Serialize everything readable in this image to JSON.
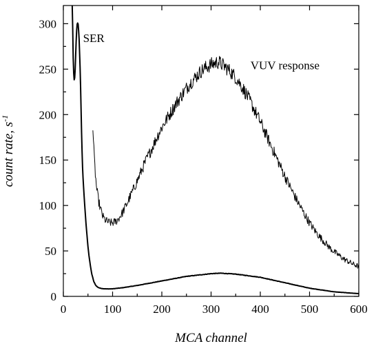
{
  "chart_data": {
    "type": "line",
    "title": "",
    "xlabel": "MCA channel",
    "ylabel_main": "count rate, s",
    "ylabel_sup": "-1",
    "xlim": [
      0,
      600
    ],
    "ylim": [
      0,
      320
    ],
    "xticks": [
      0,
      100,
      200,
      300,
      400,
      500,
      600
    ],
    "yticks": [
      0,
      50,
      100,
      150,
      200,
      250,
      300
    ],
    "xtick_labels": [
      "0",
      "100",
      "200",
      "300",
      "400",
      "500",
      "600"
    ],
    "ytick_labels": [
      "0",
      "50",
      "100",
      "150",
      "200",
      "250",
      "300"
    ],
    "grid": false,
    "annotations": [
      {
        "text": "SER",
        "x": 40,
        "y": 280
      },
      {
        "text": "VUV response",
        "x": 380,
        "y": 250
      }
    ],
    "series": [
      {
        "key": "ser",
        "stroke_width": 2.0,
        "noise": 0.5,
        "x": [
          18,
          19,
          20,
          21,
          22,
          23,
          24,
          25,
          26,
          27,
          28,
          29,
          30,
          31,
          32,
          33,
          34,
          35,
          36,
          37,
          38,
          39,
          40,
          42,
          44,
          46,
          48,
          50,
          52,
          54,
          56,
          58,
          60,
          62,
          64,
          66,
          68,
          70,
          75,
          80,
          90,
          100,
          120,
          150,
          200,
          250,
          300,
          320,
          350,
          400,
          450,
          500,
          550,
          600
        ],
        "y": [
          320,
          295,
          262,
          245,
          238,
          240,
          250,
          265,
          280,
          292,
          299,
          301,
          299,
          293,
          283,
          268,
          252,
          230,
          205,
          180,
          160,
          142,
          130,
          112,
          95,
          80,
          67,
          55,
          45,
          37,
          30,
          24,
          20,
          16,
          14,
          12,
          11,
          10,
          9,
          8.5,
          8.2,
          8.3,
          9.5,
          12,
          17,
          22,
          25,
          25.5,
          24.5,
          21,
          15,
          9,
          5,
          3
        ]
      },
      {
        "key": "vuv",
        "stroke_width": 1.0,
        "noise": 5,
        "x": [
          60,
          61,
          62,
          63,
          64,
          65,
          66,
          67,
          68,
          70,
          72,
          75,
          78,
          80,
          85,
          90,
          95,
          100,
          105,
          110,
          120,
          130,
          140,
          150,
          160,
          170,
          180,
          190,
          200,
          210,
          220,
          230,
          240,
          250,
          260,
          270,
          280,
          290,
          300,
          310,
          315,
          320,
          330,
          340,
          350,
          360,
          370,
          380,
          390,
          400,
          410,
          420,
          430,
          440,
          450,
          460,
          470,
          480,
          490,
          500,
          510,
          520,
          530,
          540,
          550,
          560,
          570,
          580,
          590,
          600
        ],
        "y": [
          185,
          172,
          160,
          150,
          142,
          135,
          128,
          122,
          117,
          110,
          104,
          97,
          92,
          88,
          84,
          82,
          81,
          81,
          82,
          84,
          92,
          103,
          115,
          127,
          140,
          152,
          163,
          175,
          186,
          195,
          204,
          213,
          221,
          229,
          236,
          242,
          248,
          252,
          255,
          257,
          258,
          256,
          252,
          247,
          241,
          233,
          224,
          214,
          203,
          192,
          180,
          168,
          156,
          144,
          132,
          121,
          110,
          100,
          90,
          81,
          73,
          66,
          60,
          54,
          49,
          45,
          41,
          38,
          35,
          33
        ]
      }
    ]
  }
}
